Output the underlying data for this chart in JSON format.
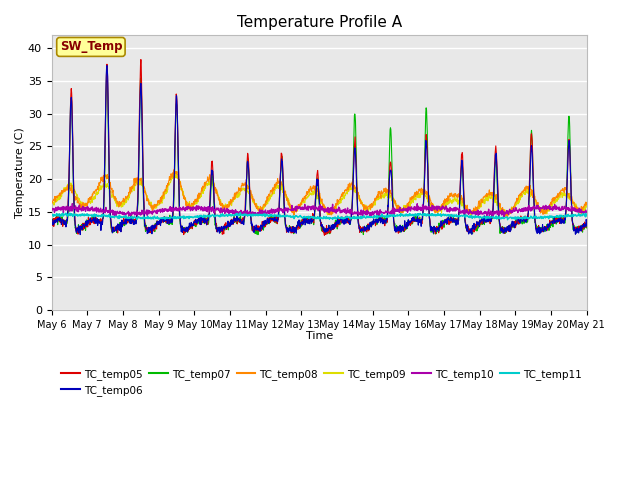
{
  "title": "Temperature Profile A",
  "xlabel": "Time",
  "ylabel": "Temperature (C)",
  "ylim": [
    0,
    42
  ],
  "yticks": [
    0,
    5,
    10,
    15,
    20,
    25,
    30,
    35,
    40
  ],
  "bg_color": "#e8e8e8",
  "series_colors": {
    "TC_temp05": "#dd0000",
    "TC_temp06": "#0000bb",
    "TC_temp07": "#00bb00",
    "TC_temp08": "#ff8800",
    "TC_temp09": "#dddd00",
    "TC_temp10": "#aa00aa",
    "TC_temp11": "#00cccc"
  },
  "sw_temp_box": {
    "text": "SW_Temp",
    "facecolor": "#ffff99",
    "edgecolor": "#aa8800",
    "textcolor": "#880000"
  },
  "legend_entries": [
    "TC_temp05",
    "TC_temp06",
    "TC_temp07",
    "TC_temp08",
    "TC_temp09",
    "TC_temp10",
    "TC_temp11"
  ],
  "peak_times": [
    0.55,
    1.55,
    2.5,
    3.5,
    4.5,
    5.5,
    6.45,
    7.45,
    8.5,
    9.5,
    10.5,
    11.5,
    12.45,
    13.45,
    14.5
  ],
  "peak_amps_05": [
    21,
    25,
    25,
    20,
    10,
    11,
    11,
    8,
    13,
    10,
    14,
    11,
    12,
    14,
    13
  ],
  "peak_amps_06": [
    20,
    25,
    22,
    20,
    9,
    10,
    10,
    7,
    12,
    9,
    13,
    10,
    11,
    12,
    13
  ],
  "peak_amps_07": [
    20,
    24,
    23,
    19,
    8,
    10,
    10,
    7,
    17,
    15,
    18,
    10,
    10,
    14,
    17
  ],
  "peak_amps_08": [
    4,
    6,
    5,
    6,
    5,
    4,
    4,
    3,
    4,
    3,
    3,
    2,
    2,
    3,
    3
  ],
  "peak_amps_09": [
    5,
    5,
    5,
    6,
    5,
    4,
    4,
    3,
    4,
    3,
    3,
    2,
    2,
    3,
    3
  ],
  "num_points": 1500
}
